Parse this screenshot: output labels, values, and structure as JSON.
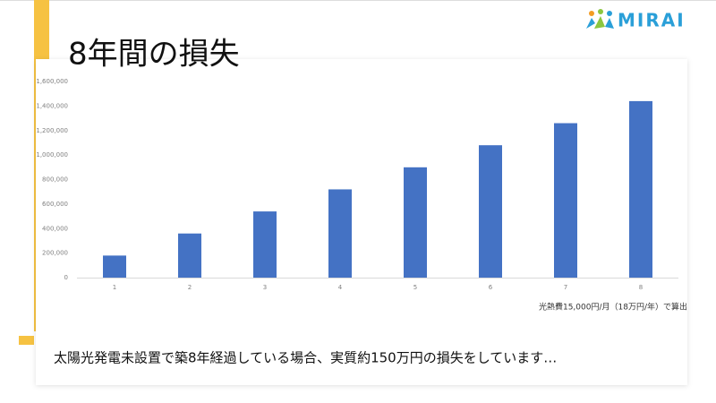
{
  "logo": "MIRAI",
  "chart_data": {
    "type": "bar",
    "title": "8年間の損失",
    "categories": [
      "1",
      "2",
      "3",
      "4",
      "5",
      "6",
      "7",
      "8"
    ],
    "values": [
      180000,
      360000,
      540000,
      720000,
      900000,
      1080000,
      1260000,
      1440000
    ],
    "color": "#4472c4",
    "ylim": [
      0,
      1600000
    ],
    "yticks": [
      0,
      {
        "value": 200000,
        "label": "200,000"
      },
      {
        "value": 400000,
        "label": "400,000"
      },
      {
        "value": 600000,
        "label": "600,000"
      },
      {
        "value": 800000,
        "label": "800,000"
      },
      {
        "value": 1000000,
        "label": "1,000,000"
      },
      {
        "value": 1200000,
        "label": "1,200,000"
      },
      {
        "value": 1400000,
        "label": "1,400,000"
      },
      {
        "value": 1600000,
        "label": "1,600,000"
      }
    ],
    "grid": false,
    "annotation": "光熱費15,000円/月（18万円/年）で算出"
  },
  "caption": "太陽光発電未設置で築8年経過している場合、実質約150万円の損失をしています…"
}
